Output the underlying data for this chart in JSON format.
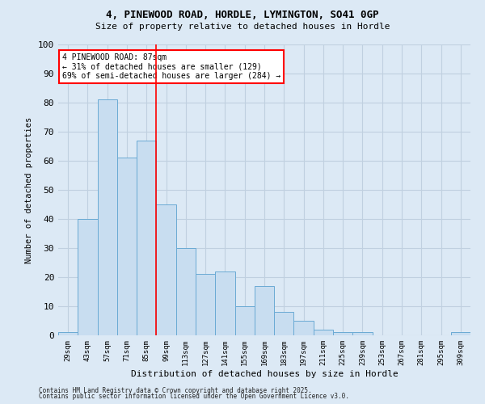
{
  "title_line1": "4, PINEWOOD ROAD, HORDLE, LYMINGTON, SO41 0GP",
  "title_line2": "Size of property relative to detached houses in Hordle",
  "xlabel": "Distribution of detached houses by size in Hordle",
  "ylabel": "Number of detached properties",
  "categories": [
    "29sqm",
    "43sqm",
    "57sqm",
    "71sqm",
    "85sqm",
    "99sqm",
    "113sqm",
    "127sqm",
    "141sqm",
    "155sqm",
    "169sqm",
    "183sqm",
    "197sqm",
    "211sqm",
    "225sqm",
    "239sqm",
    "253sqm",
    "267sqm",
    "281sqm",
    "295sqm",
    "309sqm"
  ],
  "values": [
    1,
    40,
    81,
    61,
    67,
    45,
    30,
    21,
    22,
    10,
    17,
    8,
    5,
    2,
    1,
    1,
    0,
    0,
    0,
    0,
    1
  ],
  "bar_color": "#c8ddf0",
  "bar_edge_color": "#6aaad4",
  "grid_color": "#c0d0e0",
  "background_color": "#dce9f5",
  "vline_x_index": 4,
  "vline_color": "red",
  "annotation_text": "4 PINEWOOD ROAD: 87sqm\n← 31% of detached houses are smaller (129)\n69% of semi-detached houses are larger (284) →",
  "annotation_box_color": "white",
  "annotation_box_edge": "red",
  "ylim": [
    0,
    100
  ],
  "yticks": [
    0,
    10,
    20,
    30,
    40,
    50,
    60,
    70,
    80,
    90,
    100
  ],
  "footer_line1": "Contains HM Land Registry data © Crown copyright and database right 2025.",
  "footer_line2": "Contains public sector information licensed under the Open Government Licence v3.0."
}
